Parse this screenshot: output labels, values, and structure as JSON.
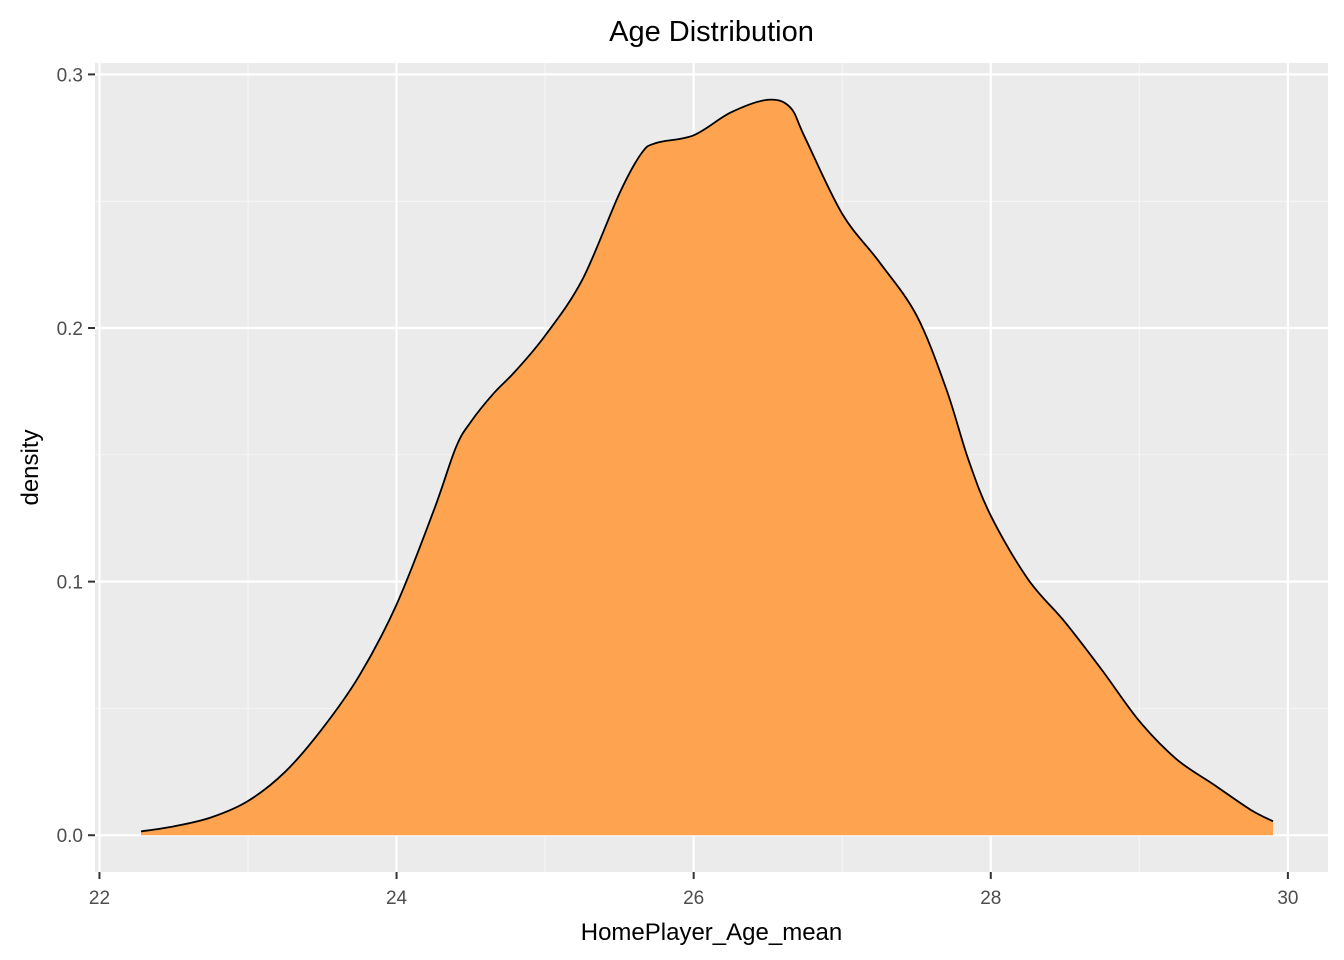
{
  "chart_data": {
    "type": "area",
    "title": "Age Distribution",
    "xlabel": "HomePlayer_Age_mean",
    "ylabel": "density",
    "xlim": [
      21.97,
      30.27
    ],
    "ylim": [
      -0.0145,
      0.3045
    ],
    "x_ticks": [
      22,
      24,
      26,
      28,
      30
    ],
    "x_tick_labels": [
      "22",
      "24",
      "26",
      "28",
      "30"
    ],
    "y_ticks": [
      0.0,
      0.1,
      0.2,
      0.3
    ],
    "y_tick_labels": [
      "0.0",
      "0.1",
      "0.2",
      "0.3"
    ],
    "grid": true,
    "x": [
      22.28,
      22.5,
      22.75,
      23.0,
      23.25,
      23.5,
      23.75,
      24.0,
      24.25,
      24.4,
      24.5,
      24.65,
      24.8,
      25.0,
      25.25,
      25.5,
      25.65,
      25.75,
      26.0,
      26.25,
      26.5,
      26.65,
      26.75,
      27.0,
      27.25,
      27.5,
      27.7,
      27.85,
      28.0,
      28.25,
      28.5,
      28.75,
      29.0,
      29.25,
      29.5,
      29.75,
      29.9
    ],
    "density": [
      0.0015,
      0.0035,
      0.007,
      0.0135,
      0.025,
      0.042,
      0.063,
      0.091,
      0.128,
      0.153,
      0.163,
      0.174,
      0.183,
      0.197,
      0.219,
      0.253,
      0.269,
      0.273,
      0.276,
      0.285,
      0.29,
      0.287,
      0.275,
      0.245,
      0.226,
      0.205,
      0.176,
      0.148,
      0.126,
      0.101,
      0.084,
      0.065,
      0.045,
      0.03,
      0.02,
      0.01,
      0.0055
    ],
    "colors": {
      "fill": "#fea450",
      "outline": "#000000",
      "panel": "#ebebeb",
      "grid_major": "#ffffff",
      "grid_minor": "#f5f5f5",
      "tick_text": "#4d4d4d",
      "tick_mark": "#333333"
    }
  }
}
